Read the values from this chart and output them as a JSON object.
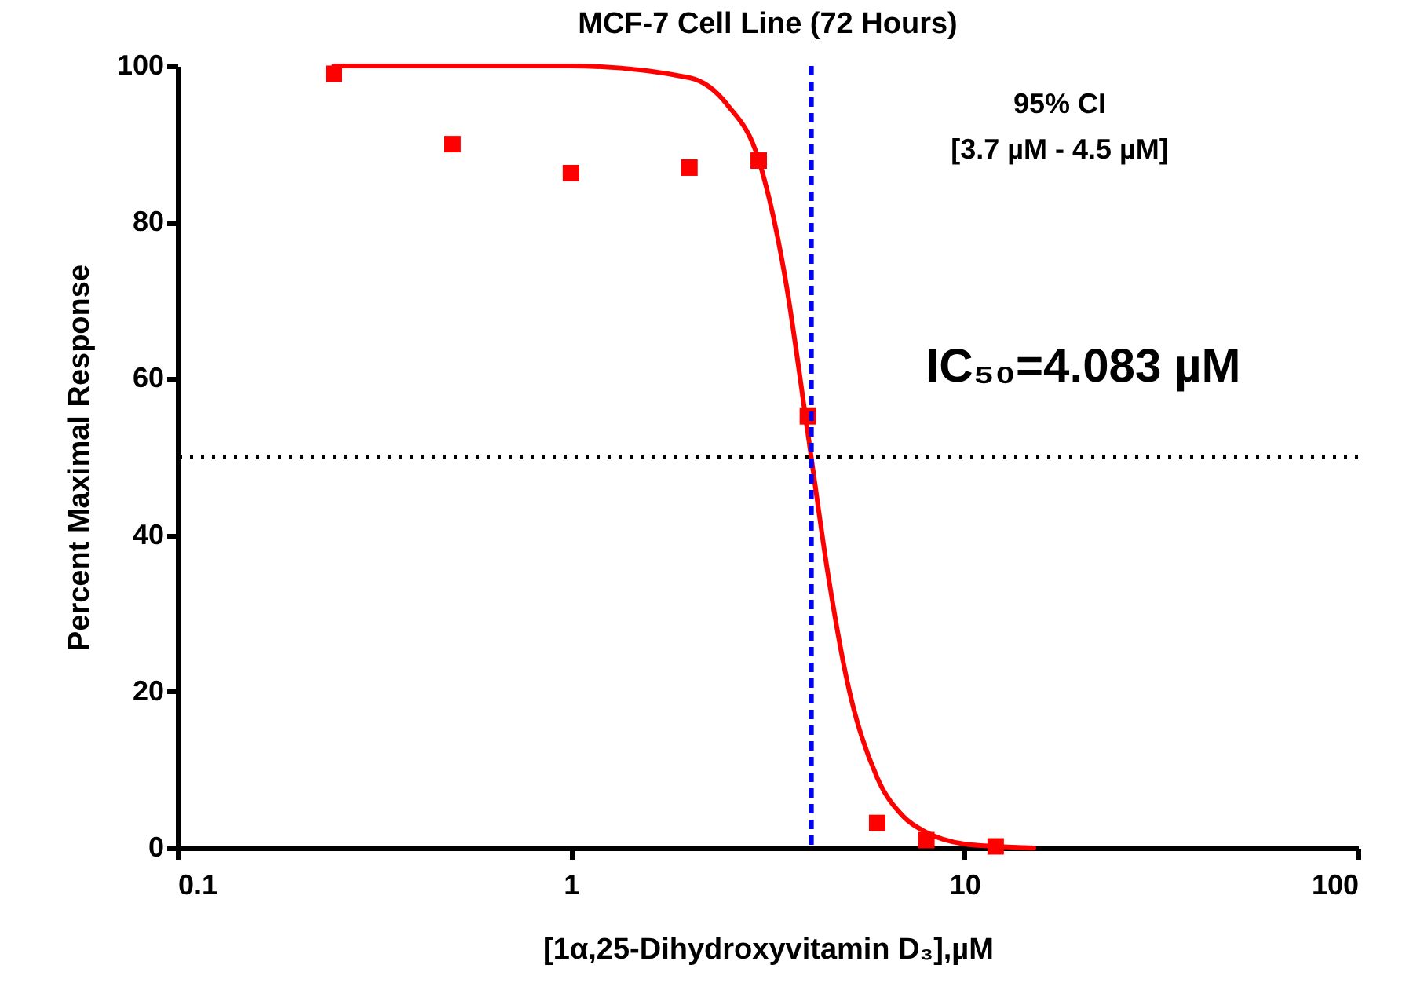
{
  "chart_data": {
    "type": "scatter",
    "title": "MCF-7 Cell Line (72 Hours)",
    "xlabel": "[1α,25-Dihydroxyvitamin D₃],µM",
    "ylabel": "Percent Maximal Response",
    "log": "x",
    "xlim": [
      0.1,
      100
    ],
    "xticks": [
      0.1,
      1,
      10,
      100
    ],
    "ylim": [
      0,
      100
    ],
    "yticks": [
      0,
      20,
      40,
      60,
      80,
      100
    ],
    "grid": false,
    "series": [
      {
        "type": "scatter",
        "marker": "square",
        "color": "#ff0000",
        "x": [
          0.25,
          0.5,
          1,
          2,
          3,
          4,
          6,
          8,
          12
        ],
        "values": [
          99,
          90,
          86.3,
          87,
          87.9,
          55.2,
          3.2,
          1,
          0.2
        ]
      },
      {
        "type": "line",
        "line_style": "solid",
        "color": "#ff0000",
        "x": [
          0.25,
          1,
          2,
          2.5,
          3,
          3.5,
          4,
          4.5,
          5,
          6,
          7,
          8,
          10,
          12,
          15
        ],
        "values": [
          100,
          100,
          98.5,
          95,
          88,
          73,
          53,
          35,
          22,
          9,
          4,
          2,
          0.5,
          0.2,
          0
        ]
      }
    ],
    "ref_lines": [
      {
        "axis": "x",
        "value": 4.083,
        "color": "#0000ff",
        "line_style": "dashed"
      },
      {
        "axis": "y",
        "value": 50,
        "color": "#000000",
        "line_style": "dotted"
      }
    ],
    "annotations": [
      "95% CI",
      "[3.7 µM - 4.5 µM]",
      "IC₅₀=4.083 µM"
    ]
  }
}
